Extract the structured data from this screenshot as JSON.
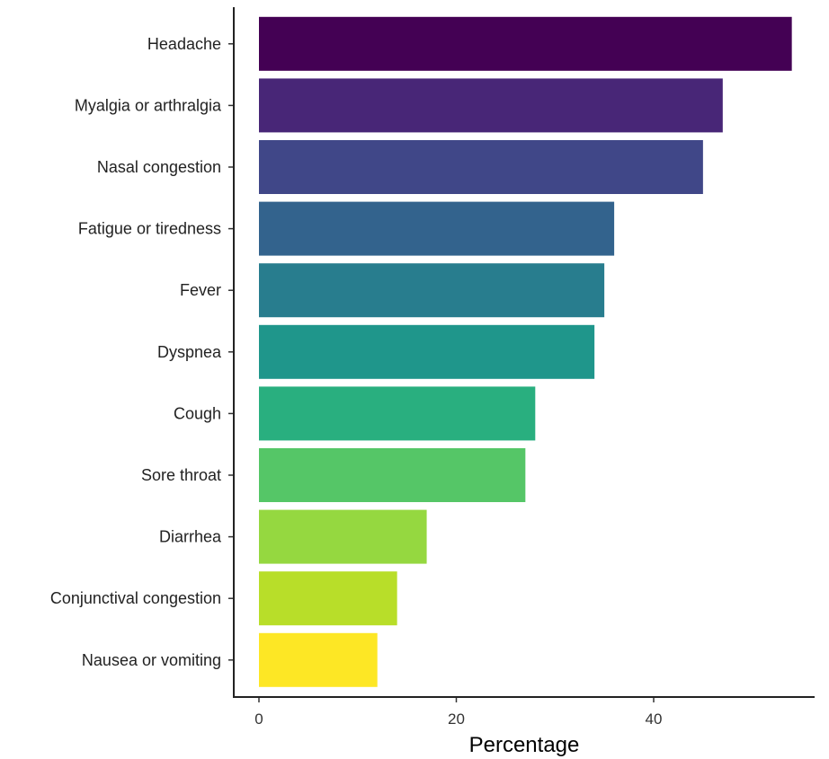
{
  "chart_data": {
    "type": "bar",
    "orientation": "horizontal",
    "title": "",
    "xlabel": "Percentage",
    "ylabel": "",
    "categories": [
      "Headache",
      "Myalgia or arthralgia",
      "Nasal congestion",
      "Fatigue or tiredness",
      "Fever",
      "Dyspnea",
      "Cough",
      "Sore throat",
      "Diarrhea",
      "Conjunctival congestion",
      "Nausea or vomiting"
    ],
    "values": [
      54,
      47,
      45,
      36,
      35,
      34,
      28,
      27,
      17,
      14,
      12
    ],
    "colors": [
      "#440154",
      "#482677",
      "#404788",
      "#33638D",
      "#287D8E",
      "#1F968B",
      "#29AF7F",
      "#55C667",
      "#95D840",
      "#B8DE29",
      "#FDE725"
    ],
    "xlim": [
      0,
      56
    ],
    "xticks": [
      0,
      20,
      40
    ],
    "xtick_labels": [
      "0",
      "20",
      "40"
    ],
    "grid": false,
    "legend": "none"
  }
}
